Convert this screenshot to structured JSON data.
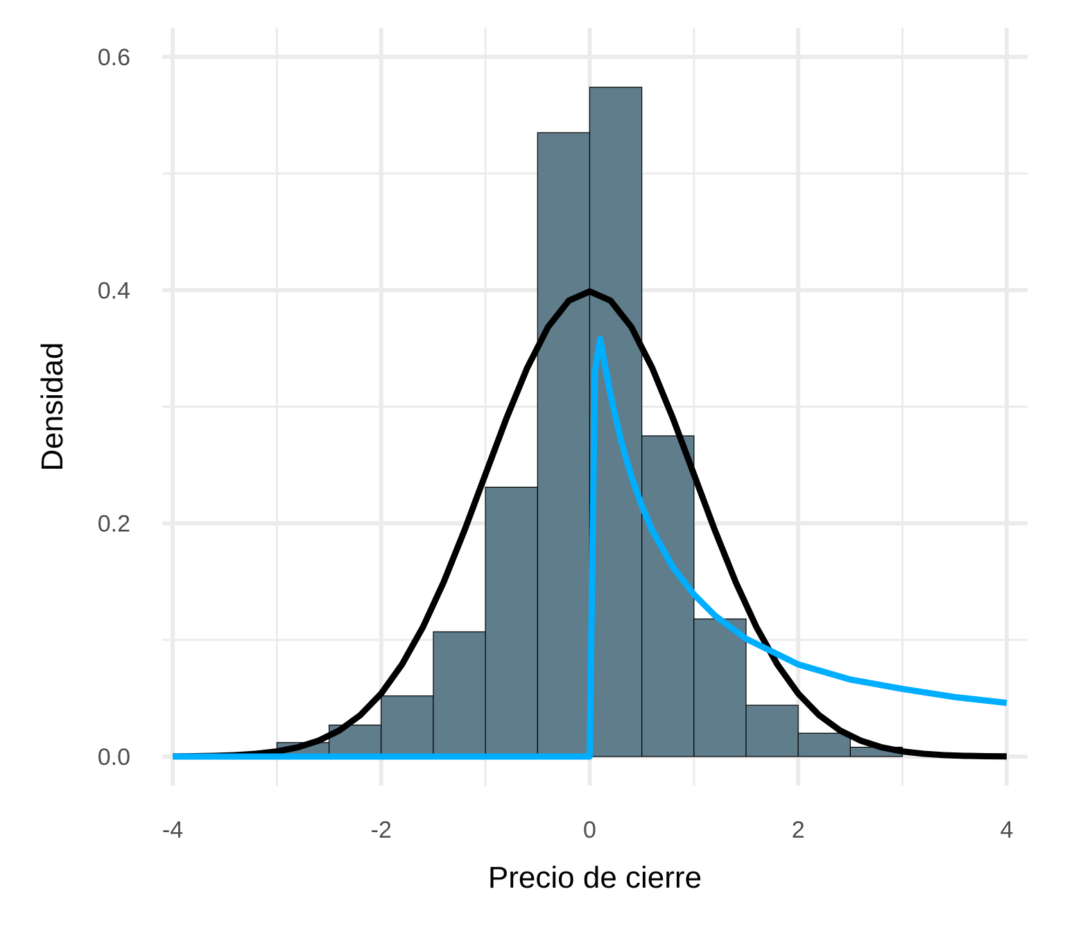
{
  "chart_data": {
    "type": "bar",
    "title": "",
    "xlabel": "Precio de cierre",
    "ylabel": "Densidad",
    "xlim": [
      -4.1,
      4.2
    ],
    "ylim": [
      -0.025,
      0.625
    ],
    "x_ticks": [
      -4,
      -2,
      0,
      2,
      4
    ],
    "x_tick_labels": [
      "-4",
      "-2",
      "0",
      "2",
      "4"
    ],
    "x_minor_grid": [
      -3,
      -1,
      1,
      3
    ],
    "y_ticks": [
      0.0,
      0.2,
      0.4,
      0.6
    ],
    "y_tick_labels": [
      "0.0",
      "0.2",
      "0.4",
      "0.6"
    ],
    "y_minor_grid": [
      0.1,
      0.3,
      0.5
    ],
    "grid": true,
    "legend": "none",
    "histogram": {
      "bin_width": 0.5,
      "bins": [
        {
          "x0": -3.0,
          "x1": -2.5,
          "density": 0.012
        },
        {
          "x0": -2.5,
          "x1": -2.0,
          "density": 0.027
        },
        {
          "x0": -2.0,
          "x1": -1.5,
          "density": 0.052
        },
        {
          "x0": -1.5,
          "x1": -1.0,
          "density": 0.107
        },
        {
          "x0": -1.0,
          "x1": -0.5,
          "density": 0.231
        },
        {
          "x0": -0.5,
          "x1": 0.0,
          "density": 0.535
        },
        {
          "x0": 0.0,
          "x1": 0.5,
          "density": 0.574
        },
        {
          "x0": 0.5,
          "x1": 1.0,
          "density": 0.275
        },
        {
          "x0": 1.0,
          "x1": 1.5,
          "density": 0.118
        },
        {
          "x0": 1.5,
          "x1": 2.0,
          "density": 0.044
        },
        {
          "x0": 2.0,
          "x1": 2.5,
          "density": 0.02
        },
        {
          "x0": 2.5,
          "x1": 3.0,
          "density": 0.008
        }
      ]
    },
    "series": [
      {
        "type": "line",
        "color": "#000000",
        "x": [
          -4.0,
          -3.8,
          -3.6,
          -3.4,
          -3.2,
          -3.0,
          -2.8,
          -2.6,
          -2.4,
          -2.2,
          -2.0,
          -1.8,
          -1.6,
          -1.4,
          -1.2,
          -1.0,
          -0.8,
          -0.6,
          -0.4,
          -0.2,
          0.0,
          0.2,
          0.4,
          0.6,
          0.8,
          1.0,
          1.2,
          1.4,
          1.6,
          1.8,
          2.0,
          2.2,
          2.4,
          2.6,
          2.8,
          3.0,
          3.2,
          3.4,
          3.6,
          3.8,
          4.0
        ],
        "y": [
          0.0001,
          0.0003,
          0.0006,
          0.0012,
          0.0024,
          0.0044,
          0.0079,
          0.0136,
          0.0224,
          0.0355,
          0.054,
          0.079,
          0.1109,
          0.1497,
          0.1942,
          0.242,
          0.2897,
          0.3332,
          0.3683,
          0.391,
          0.3989,
          0.391,
          0.3683,
          0.3332,
          0.2897,
          0.242,
          0.1942,
          0.1497,
          0.1109,
          0.079,
          0.054,
          0.0355,
          0.0224,
          0.0136,
          0.0079,
          0.0044,
          0.0024,
          0.0012,
          0.0006,
          0.0003,
          0.0001
        ]
      },
      {
        "type": "line",
        "color": "#00aeff",
        "x": [
          -4.0,
          -3.0,
          -2.0,
          -1.0,
          0.0,
          0.05,
          0.1,
          0.2,
          0.3,
          0.4,
          0.5,
          0.6,
          0.8,
          1.0,
          1.2,
          1.5,
          2.0,
          2.5,
          3.0,
          3.5,
          4.0
        ],
        "y": [
          0.0,
          0.0,
          0.0,
          0.0,
          0.0,
          0.33,
          0.358,
          0.31,
          0.271,
          0.24,
          0.215,
          0.194,
          0.162,
          0.139,
          0.121,
          0.101,
          0.079,
          0.066,
          0.058,
          0.051,
          0.046
        ]
      }
    ]
  }
}
